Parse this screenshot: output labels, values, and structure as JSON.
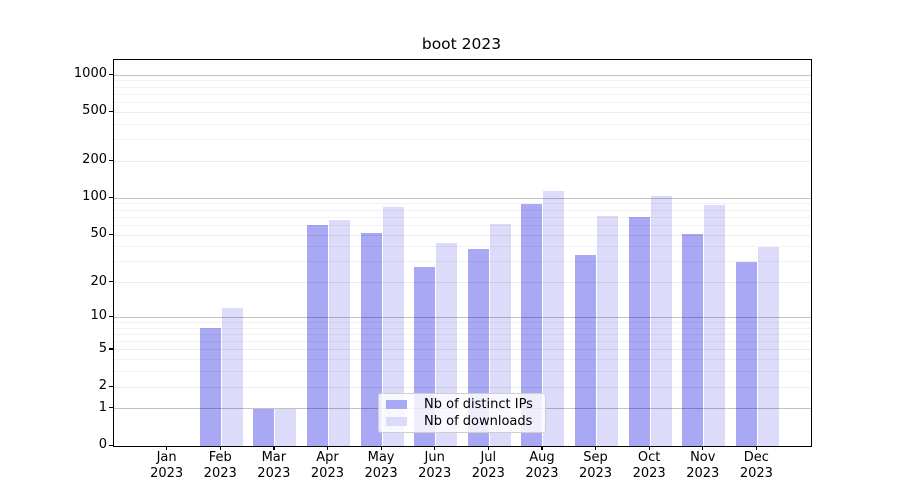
{
  "chart_data": {
    "type": "bar",
    "title": "boot 2023",
    "categories": [
      "Jan 2023",
      "Feb 2023",
      "Mar 2023",
      "Apr 2023",
      "May 2023",
      "Jun 2023",
      "Jul 2023",
      "Aug 2023",
      "Sep 2023",
      "Oct 2023",
      "Nov 2023",
      "Dec 2023"
    ],
    "series": [
      {
        "name": "Nb of distinct IPs",
        "color": "#a8a8f5",
        "values": [
          0,
          8,
          1,
          60,
          52,
          27,
          38,
          90,
          34,
          70,
          51,
          30
        ]
      },
      {
        "name": "Nb of downloads",
        "color": "#dcdcfa",
        "values": [
          0,
          12,
          1,
          66,
          85,
          43,
          62,
          114,
          72,
          104,
          89,
          40
        ]
      }
    ],
    "y_axis": {
      "scale": "log1p",
      "ticks": [
        0,
        1,
        2,
        5,
        10,
        20,
        50,
        100,
        200,
        500,
        1000
      ],
      "minor_ticks": [
        3,
        4,
        6,
        7,
        8,
        9,
        30,
        40,
        60,
        70,
        80,
        90,
        300,
        400,
        600,
        700,
        800,
        900
      ],
      "ylim": [
        0,
        1330
      ]
    },
    "grid": true,
    "legend_position": "lower center",
    "colors": {
      "grid_power_of_ten": "#c3c3c3",
      "grid_labeled": "#ececec",
      "grid_minor": "#f2f2f2",
      "spine": "#000000",
      "background": "#ffffff"
    }
  }
}
